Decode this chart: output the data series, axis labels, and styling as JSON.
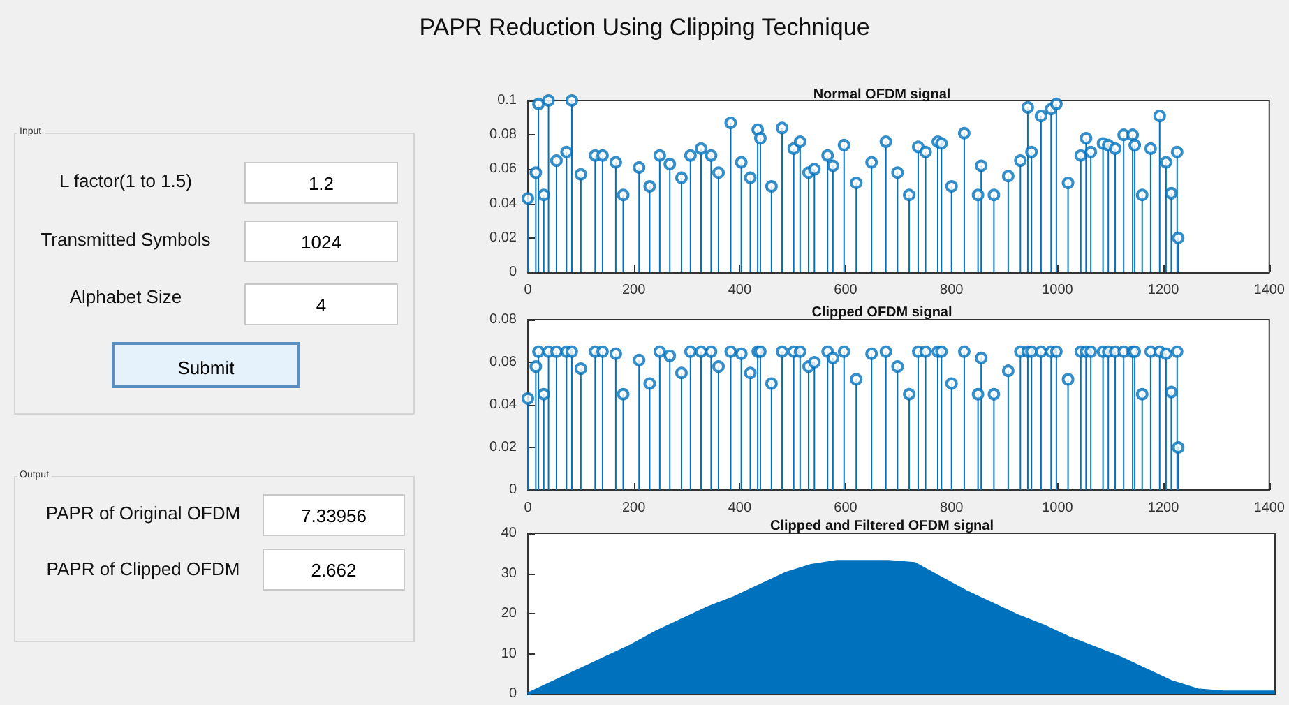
{
  "chart_data": [
    {
      "type": "other",
      "title": "PAPR Reduction Using Clipping Technique",
      "annotations": [
        "Input",
        "L factor(1 to 1.5)",
        "1.2",
        "Transmitted Symbols",
        "1024",
        "Alphabet Size",
        "4",
        "Submit",
        "Output",
        "PAPR of Original OFDM",
        "7.33956",
        "PAPR of Clipped OFDM",
        "2.662"
      ]
    },
    {
      "type": "lollipop",
      "title": "Normal OFDM signal",
      "marker": "circle",
      "xlim": [
        0,
        1400
      ],
      "xticks": [
        0,
        200,
        400,
        600,
        800,
        1000,
        1200,
        1400
      ],
      "ylim": [
        0,
        0.1
      ],
      "yticks": [
        0,
        0.02,
        0.04,
        0.06,
        0.08,
        0.1
      ],
      "x": [
        0,
        15,
        20,
        30,
        39,
        54,
        73,
        83,
        100,
        127,
        141,
        166,
        180,
        210,
        230,
        249,
        268,
        290,
        307,
        327,
        346,
        360,
        383,
        403,
        420,
        434,
        439,
        460,
        480,
        502,
        514,
        530,
        541,
        566,
        576,
        597,
        620,
        649,
        676,
        698,
        720,
        737,
        751,
        774,
        781,
        800,
        824,
        850,
        856,
        880,
        907,
        930,
        944,
        951,
        969,
        988,
        998,
        1020,
        1044,
        1054,
        1063,
        1086,
        1096,
        1109,
        1125,
        1142,
        1146,
        1160,
        1176,
        1193,
        1205,
        1215,
        1226,
        1228
      ],
      "series": [
        {
          "color": "#0072bd",
          "values": [
            0.043,
            0.058,
            0.098,
            0.045,
            0.1,
            0.065,
            0.07,
            0.1,
            0.057,
            0.068,
            0.068,
            0.064,
            0.045,
            0.061,
            0.05,
            0.068,
            0.063,
            0.055,
            0.068,
            0.072,
            0.068,
            0.058,
            0.087,
            0.064,
            0.055,
            0.083,
            0.078,
            0.05,
            0.084,
            0.072,
            0.076,
            0.058,
            0.06,
            0.068,
            0.062,
            0.074,
            0.052,
            0.064,
            0.076,
            0.058,
            0.045,
            0.073,
            0.07,
            0.076,
            0.075,
            0.05,
            0.081,
            0.045,
            0.062,
            0.045,
            0.056,
            0.065,
            0.096,
            0.07,
            0.091,
            0.095,
            0.098,
            0.052,
            0.068,
            0.078,
            0.07,
            0.075,
            0.074,
            0.072,
            0.08,
            0.08,
            0.074,
            0.045,
            0.072,
            0.091,
            0.064,
            0.046,
            0.07,
            0.02
          ]
        }
      ]
    },
    {
      "type": "lollipop",
      "title": "Clipped OFDM signal",
      "marker": "circle",
      "xlim": [
        0,
        1400
      ],
      "xticks": [
        0,
        200,
        400,
        600,
        800,
        1000,
        1200,
        1400
      ],
      "ylim": [
        0,
        0.08
      ],
      "yticks": [
        0,
        0.02,
        0.04,
        0.06,
        0.08
      ],
      "x": [
        0,
        15,
        20,
        30,
        39,
        54,
        73,
        83,
        100,
        127,
        141,
        166,
        180,
        210,
        230,
        249,
        268,
        290,
        307,
        327,
        346,
        360,
        383,
        403,
        420,
        434,
        439,
        460,
        480,
        502,
        514,
        530,
        541,
        566,
        576,
        597,
        620,
        649,
        676,
        698,
        720,
        737,
        751,
        774,
        781,
        800,
        824,
        850,
        856,
        880,
        907,
        930,
        944,
        951,
        969,
        988,
        998,
        1020,
        1044,
        1054,
        1063,
        1086,
        1096,
        1109,
        1125,
        1142,
        1146,
        1160,
        1176,
        1193,
        1205,
        1215,
        1226,
        1228
      ],
      "series": [
        {
          "color": "#0072bd",
          "values": [
            0.043,
            0.058,
            0.065,
            0.045,
            0.065,
            0.065,
            0.065,
            0.065,
            0.057,
            0.065,
            0.065,
            0.064,
            0.045,
            0.061,
            0.05,
            0.065,
            0.063,
            0.055,
            0.065,
            0.065,
            0.065,
            0.058,
            0.065,
            0.064,
            0.055,
            0.065,
            0.065,
            0.05,
            0.065,
            0.065,
            0.065,
            0.058,
            0.06,
            0.065,
            0.062,
            0.065,
            0.052,
            0.064,
            0.065,
            0.058,
            0.045,
            0.065,
            0.065,
            0.065,
            0.065,
            0.05,
            0.065,
            0.045,
            0.062,
            0.045,
            0.056,
            0.065,
            0.065,
            0.065,
            0.065,
            0.065,
            0.065,
            0.052,
            0.065,
            0.065,
            0.065,
            0.065,
            0.065,
            0.065,
            0.065,
            0.065,
            0.065,
            0.045,
            0.065,
            0.065,
            0.064,
            0.046,
            0.065,
            0.02
          ]
        }
      ]
    },
    {
      "type": "area",
      "title": "Clipped and Filtered OFDM signal",
      "ylim": [
        0,
        40
      ],
      "yticks": [
        0,
        10,
        20,
        30,
        40
      ],
      "categories": [
        null,
        null,
        null,
        null,
        null,
        null,
        null,
        null,
        null,
        null,
        null,
        null,
        null,
        null,
        null,
        null,
        null,
        null,
        null,
        null,
        null,
        null,
        null,
        null,
        null,
        null,
        null,
        null,
        null,
        null
      ],
      "series": [
        {
          "color": "#0072bd",
          "values": [
            0,
            3,
            6,
            9,
            12,
            15.5,
            18.5,
            21.5,
            24,
            27,
            30,
            32,
            33,
            33,
            33,
            32.5,
            29,
            25.5,
            22.5,
            19.5,
            17,
            14,
            11.5,
            9,
            6,
            3,
            1,
            0.5,
            0.5,
            0.5
          ]
        }
      ]
    }
  ]
}
